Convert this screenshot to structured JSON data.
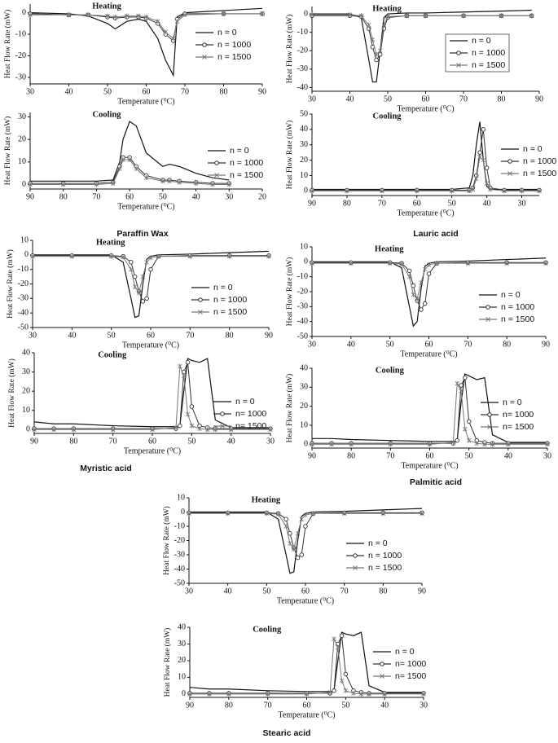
{
  "chart_data": [
    {
      "type": "line",
      "title": "Heating",
      "xlabel": "Temperature (⁰C)",
      "ylabel": "Heat Flow Rate (mW)",
      "xlim": [
        30,
        90
      ],
      "xticks": [
        30,
        40,
        50,
        60,
        70,
        80,
        90
      ],
      "ylim": [
        -33,
        4
      ],
      "yticks": [
        0,
        -10,
        -20,
        -30
      ],
      "x": [
        30,
        40,
        45,
        50,
        52,
        55,
        58,
        60,
        63,
        65,
        67,
        68,
        70,
        80,
        90
      ],
      "series": [
        {
          "name": "n = 0",
          "color": "#111111",
          "marker": "none",
          "values": [
            0,
            -0.5,
            -1.5,
            -5,
            -7.5,
            -4,
            -3,
            -4,
            -12,
            -22,
            -29,
            -2,
            0,
            1,
            2
          ]
        },
        {
          "name": "n = 1000",
          "color": "#333333",
          "marker": "circle",
          "values": [
            -0.5,
            -1,
            -1,
            -2,
            -2.5,
            -2,
            -2,
            -2.5,
            -5,
            -10,
            -13,
            -3,
            -0.5,
            -0.5,
            -0.5
          ]
        },
        {
          "name": "n = 1500",
          "color": "#777777",
          "marker": "x",
          "values": [
            -1,
            -1,
            -1,
            -1.5,
            -2,
            -1.5,
            -1.5,
            -2,
            -4,
            -9,
            -12,
            -4,
            -1,
            -0.5,
            -0.5
          ]
        }
      ]
    },
    {
      "type": "line",
      "title": "Cooling",
      "xlabel": "Temperature (⁰C)",
      "ylabel": "Heat Flow Rate (mW)",
      "xlim": [
        90,
        20
      ],
      "xticks": [
        90,
        80,
        70,
        60,
        50,
        40,
        30,
        20
      ],
      "ylim": [
        -2,
        32
      ],
      "yticks": [
        0,
        10,
        20,
        30
      ],
      "x": [
        90,
        80,
        70,
        65,
        63,
        62,
        60,
        58,
        55,
        50,
        48,
        45,
        40,
        35,
        30
      ],
      "series": [
        {
          "name": "n = 0",
          "color": "#111111",
          "marker": "none",
          "values": [
            1.5,
            1.5,
            1.5,
            2,
            10,
            20,
            28,
            26,
            14,
            8,
            9,
            8,
            5,
            3,
            2
          ]
        },
        {
          "name": "n = 1000",
          "color": "#333333",
          "marker": "circle",
          "values": [
            0.5,
            0.5,
            0.5,
            1,
            8,
            12,
            12,
            8,
            4,
            2,
            2,
            1.5,
            1,
            0.5,
            0.5
          ]
        },
        {
          "name": "n = 1500",
          "color": "#777777",
          "marker": "x",
          "values": [
            0,
            0,
            0,
            0.5,
            7,
            11,
            11,
            7,
            3,
            1.5,
            1.5,
            1,
            0.5,
            0,
            0
          ]
        }
      ]
    },
    {
      "type": "line",
      "title": "Heating",
      "xlabel": "Temperature (⁰C)",
      "ylabel": "Heat Flow Rate (mW)",
      "xlim": [
        30,
        90
      ],
      "xticks": [
        30,
        40,
        50,
        60,
        70,
        80,
        90
      ],
      "ylim": [
        -42,
        4
      ],
      "yticks": [
        0,
        -10,
        -20,
        -30,
        -40
      ],
      "x": [
        30,
        40,
        43,
        45,
        46,
        47,
        48,
        49,
        50,
        55,
        60,
        70,
        80,
        88
      ],
      "series": [
        {
          "name": "n = 0",
          "color": "#111111",
          "marker": "none",
          "values": [
            0,
            0,
            -2,
            -25,
            -37,
            -37,
            -20,
            -2,
            0,
            0.5,
            0.5,
            1,
            1.5,
            2
          ]
        },
        {
          "name": "n = 1000",
          "color": "#333333",
          "marker": "circle",
          "values": [
            -1,
            -1,
            -1.5,
            -8,
            -18,
            -25,
            -22,
            -8,
            -2,
            -1,
            -1,
            -1,
            -1,
            -1
          ]
        },
        {
          "name": "n = 1500",
          "color": "#777777",
          "marker": "x",
          "values": [
            -0.5,
            -0.5,
            -1,
            -6,
            -14,
            -22,
            -20,
            -6,
            -1.5,
            -1,
            -1,
            -1,
            -1,
            -1
          ]
        }
      ]
    },
    {
      "type": "line",
      "title": "Cooling",
      "xlabel": "Temperature (⁰C)",
      "ylabel": "Heat Flow Rate (mW)",
      "xlim": [
        90,
        25
      ],
      "xticks": [
        90,
        80,
        70,
        60,
        50,
        40,
        30
      ],
      "ylim": [
        -3,
        50
      ],
      "yticks": [
        0,
        10,
        20,
        30,
        40,
        50
      ],
      "x": [
        90,
        80,
        70,
        60,
        50,
        45,
        44,
        43,
        42,
        41,
        40,
        39,
        35,
        30,
        25
      ],
      "series": [
        {
          "name": "n = 0",
          "color": "#111111",
          "marker": "none",
          "values": [
            1,
            1,
            1,
            1,
            1,
            2,
            10,
            30,
            45,
            20,
            3,
            1,
            1,
            1,
            1
          ]
        },
        {
          "name": "n = 1000",
          "color": "#333333",
          "marker": "circle",
          "values": [
            0.5,
            0.5,
            0.5,
            0.5,
            0.5,
            0.5,
            2,
            10,
            25,
            40,
            15,
            2,
            0.5,
            0.5,
            0.5
          ]
        },
        {
          "name": "n = 1500",
          "color": "#777777",
          "marker": "x",
          "values": [
            0,
            0,
            0,
            0,
            0,
            0,
            1,
            8,
            22,
            20,
            5,
            1,
            0,
            0,
            0
          ]
        }
      ]
    },
    {
      "type": "line",
      "title": "Heating",
      "xlabel": "Temperature (⁰C)",
      "ylabel": "Heat Flow Rate (mW)",
      "xlim": [
        30,
        90
      ],
      "xticks": [
        30,
        40,
        50,
        60,
        70,
        80,
        90
      ],
      "ylim": [
        -50,
        10
      ],
      "yticks": [
        10,
        0,
        -10,
        -20,
        -30,
        -40,
        -50
      ],
      "x": [
        30,
        40,
        50,
        53,
        55,
        56,
        57,
        58,
        59,
        60,
        62,
        70,
        80,
        90
      ],
      "series": [
        {
          "name": "n = 0",
          "color": "#111111",
          "marker": "none",
          "values": [
            0,
            0,
            0,
            -5,
            -30,
            -43,
            -42,
            -20,
            -3,
            -1,
            0,
            0.5,
            1.5,
            2.5
          ]
        },
        {
          "name": "n = 1000",
          "color": "#333333",
          "marker": "circle",
          "values": [
            -0.5,
            -0.5,
            -0.5,
            -1,
            -5,
            -15,
            -25,
            -32,
            -30,
            -10,
            -1,
            -0.5,
            -0.5,
            -0.5
          ]
        },
        {
          "name": "n = 1500",
          "color": "#777777",
          "marker": "x",
          "values": [
            -1,
            -1,
            -1,
            -1.5,
            -10,
            -22,
            -26,
            -15,
            -5,
            -2,
            -1,
            -1,
            -1,
            -1
          ]
        }
      ]
    },
    {
      "type": "line",
      "title": "Cooling",
      "xlabel": "Temperature (⁰C)",
      "ylabel": "Heat Flow Rate (mW)",
      "xlim": [
        90,
        30
      ],
      "xticks": [
        90,
        80,
        70,
        60,
        50,
        40,
        30
      ],
      "ylim": [
        -2,
        40
      ],
      "yticks": [
        0,
        10,
        20,
        30,
        40
      ],
      "x": [
        90,
        85,
        80,
        70,
        60,
        54,
        53,
        52,
        51,
        50,
        48,
        46,
        44,
        40,
        30
      ],
      "series": [
        {
          "name": "n = 0",
          "color": "#111111",
          "marker": "none",
          "values": [
            4,
            3,
            3,
            2,
            1.5,
            1.5,
            2,
            20,
            37,
            36,
            35,
            37,
            5,
            1,
            1
          ]
        },
        {
          "name": "n= 1000",
          "color": "#333333",
          "marker": "circle",
          "values": [
            0.5,
            0.5,
            0.5,
            0.5,
            0.5,
            0.5,
            2,
            30,
            35,
            12,
            2,
            1,
            0.5,
            0.5,
            0.5
          ]
        },
        {
          "name": "n= 1500",
          "color": "#777777",
          "marker": "x",
          "values": [
            0,
            0,
            0,
            0,
            0,
            1,
            33,
            28,
            8,
            2,
            0.5,
            0,
            0,
            0,
            0
          ]
        }
      ]
    },
    {
      "type": "line",
      "title": "Heating",
      "xlabel": "Temperature (⁰C)",
      "ylabel": "Heat Flow Rate (mW)",
      "xlim": [
        30,
        90
      ],
      "xticks": [
        30,
        40,
        50,
        60,
        70,
        80,
        90
      ],
      "ylim": [
        -50,
        10
      ],
      "yticks": [
        10,
        0,
        -10,
        -20,
        -30,
        -40,
        -50
      ],
      "x": [
        30,
        40,
        50,
        53,
        55,
        56,
        57,
        58,
        59,
        60,
        62,
        70,
        80,
        90
      ],
      "series": [
        {
          "name": "n = 0",
          "color": "#111111",
          "marker": "none",
          "values": [
            0,
            0,
            0,
            -4,
            -30,
            -43,
            -40,
            -18,
            -3,
            -1,
            0,
            0.5,
            1.5,
            2.5
          ]
        },
        {
          "name": "n = 1000",
          "color": "#333333",
          "marker": "circle",
          "values": [
            -0.5,
            -0.5,
            -0.5,
            -1,
            -6,
            -16,
            -26,
            -32,
            -28,
            -8,
            -1,
            -0.5,
            -0.5,
            -0.5
          ]
        },
        {
          "name": "n = 1500",
          "color": "#777777",
          "marker": "x",
          "values": [
            -1,
            -1,
            -1,
            -1.5,
            -10,
            -22,
            -25,
            -14,
            -5,
            -2,
            -1,
            -1,
            -1,
            -1
          ]
        }
      ]
    },
    {
      "type": "line",
      "title": "Cooling",
      "xlabel": "Temperature (⁰C)",
      "ylabel": "Heat Flow Rate (mW)",
      "xlim": [
        90,
        30
      ],
      "xticks": [
        90,
        80,
        70,
        60,
        50,
        40,
        30
      ],
      "ylim": [
        -2,
        40
      ],
      "yticks": [
        0,
        10,
        20,
        30,
        40
      ],
      "x": [
        90,
        85,
        80,
        70,
        60,
        54,
        53,
        52,
        51,
        50,
        48,
        46,
        44,
        40,
        30
      ],
      "series": [
        {
          "name": "n = 0",
          "color": "#111111",
          "marker": "none",
          "values": [
            3,
            3,
            2.5,
            2,
            1.5,
            1.5,
            2,
            22,
            37,
            36,
            34,
            35,
            5,
            1,
            1
          ]
        },
        {
          "name": "n= 1000",
          "color": "#333333",
          "marker": "circle",
          "values": [
            0.5,
            0.5,
            0.5,
            0.5,
            0.5,
            0.5,
            2,
            31,
            35,
            12,
            2,
            1,
            0.5,
            0.5,
            0.5
          ]
        },
        {
          "name": "n= 1500",
          "color": "#777777",
          "marker": "x",
          "values": [
            0,
            0,
            0,
            0,
            0,
            1,
            32,
            28,
            8,
            2,
            0.5,
            0,
            0,
            0,
            0
          ]
        }
      ]
    },
    {
      "type": "line",
      "title": "Heating",
      "xlabel": "Temperature (⁰C)",
      "ylabel": "Heat Flow Rate (mW)",
      "xlim": [
        30,
        90
      ],
      "xticks": [
        30,
        40,
        50,
        60,
        70,
        80,
        90
      ],
      "ylim": [
        -50,
        10
      ],
      "yticks": [
        10,
        0,
        -10,
        -20,
        -30,
        -40,
        -50
      ],
      "x": [
        30,
        40,
        50,
        53,
        55,
        56,
        57,
        58,
        59,
        60,
        62,
        70,
        80,
        90
      ],
      "series": [
        {
          "name": "n = 0",
          "color": "#111111",
          "marker": "none",
          "values": [
            0,
            0,
            0,
            -5,
            -30,
            -43,
            -42,
            -20,
            -3,
            -1,
            0,
            0.5,
            1.5,
            2.5
          ]
        },
        {
          "name": "n = 1000",
          "color": "#333333",
          "marker": "circle",
          "values": [
            -0.5,
            -0.5,
            -0.5,
            -1,
            -5,
            -15,
            -25,
            -32,
            -30,
            -10,
            -1,
            -0.5,
            -0.5,
            -0.5
          ]
        },
        {
          "name": "n = 1500",
          "color": "#777777",
          "marker": "x",
          "values": [
            -1,
            -1,
            -1,
            -1.5,
            -10,
            -22,
            -26,
            -15,
            -5,
            -2,
            -1,
            -1,
            -1,
            -1
          ]
        }
      ]
    },
    {
      "type": "line",
      "title": "Cooling",
      "xlabel": "Temperature (⁰C)",
      "ylabel": "Heat Flow Rate (mW)",
      "xlim": [
        90,
        30
      ],
      "xticks": [
        90,
        80,
        70,
        60,
        50,
        40,
        30
      ],
      "ylim": [
        -2,
        40
      ],
      "yticks": [
        0,
        10,
        20,
        30,
        40
      ],
      "x": [
        90,
        85,
        80,
        70,
        60,
        54,
        53,
        52,
        51,
        50,
        48,
        46,
        44,
        40,
        30
      ],
      "series": [
        {
          "name": "n = 0",
          "color": "#111111",
          "marker": "none",
          "values": [
            4,
            3,
            3,
            2,
            1.5,
            1.5,
            2,
            20,
            37,
            36,
            35,
            37,
            5,
            1,
            1
          ]
        },
        {
          "name": "n= 1000",
          "color": "#333333",
          "marker": "circle",
          "values": [
            0.5,
            0.5,
            0.5,
            0.5,
            0.5,
            0.5,
            2,
            30,
            35,
            12,
            2,
            1,
            0.5,
            0.5,
            0.5
          ]
        },
        {
          "name": "n= 1500",
          "color": "#777777",
          "marker": "x",
          "values": [
            0,
            0,
            0,
            0,
            0,
            1,
            33,
            28,
            8,
            2,
            0.5,
            0,
            0,
            0,
            0
          ]
        }
      ]
    }
  ],
  "captions": [
    "Paraffin Wax",
    "Lauric acid",
    "Myristic acid",
    "Palmitic acid",
    "Stearic acid"
  ]
}
